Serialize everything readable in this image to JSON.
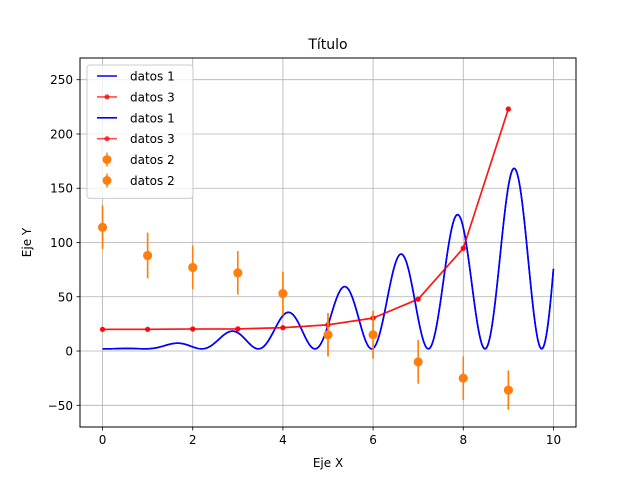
{
  "chart_data": {
    "type": "line",
    "title": "Título",
    "xlabel": "Eje X",
    "ylabel": "Eje Y",
    "xlim": [
      -0.5,
      10.5
    ],
    "ylim": [
      -70,
      270
    ],
    "xticks": [
      0,
      2,
      4,
      6,
      8,
      10
    ],
    "yticks": [
      -50,
      0,
      50,
      100,
      150,
      200,
      250
    ],
    "grid": true,
    "legend_position": "top-left",
    "series": [
      {
        "name": "datos 1",
        "kind": "curve",
        "formula": "x^2 * (1 + sin(5x)) + 2 (approx.)",
        "color": "#0000ff",
        "x_range": [
          0,
          10
        ]
      },
      {
        "name": "datos 3",
        "kind": "line-markers",
        "color": "#ff0000",
        "x": [
          0,
          1,
          2,
          3,
          4,
          5,
          6,
          7,
          8,
          9
        ],
        "y": [
          20,
          20,
          20.3,
          20.4,
          21.5,
          24.2,
          30.4,
          47.8,
          94.7,
          223
        ]
      },
      {
        "name": "datos 1",
        "kind": "curve",
        "formula": "x^2 * (1 + sin(5x)) + 2 (approx.)",
        "color": "#0000ff",
        "x_range": [
          0,
          10
        ]
      },
      {
        "name": "datos 3",
        "kind": "line-markers",
        "color": "#ff0000",
        "x": [
          0,
          1,
          2,
          3,
          4,
          5,
          6,
          7,
          8,
          9
        ],
        "y": [
          20,
          20,
          20.3,
          20.4,
          21.5,
          24.2,
          30.4,
          47.8,
          94.7,
          223
        ]
      },
      {
        "name": "datos 2",
        "kind": "errorbar",
        "color": "#ff7f0e",
        "x": [
          0,
          1,
          2,
          3,
          4,
          5,
          6,
          7,
          8,
          9
        ],
        "y": [
          114,
          88,
          77,
          72,
          53,
          15,
          15,
          -10,
          -25,
          -36
        ],
        "yerr": [
          20,
          21,
          20,
          20,
          20,
          20,
          22,
          20,
          20,
          18
        ]
      },
      {
        "name": "datos 2",
        "kind": "errorbar",
        "color": "#ff7f0e",
        "x": [
          0,
          1,
          2,
          3,
          4,
          5,
          6,
          7,
          8,
          9
        ],
        "y": [
          114,
          88,
          77,
          72,
          53,
          15,
          15,
          -10,
          -25,
          -36
        ],
        "yerr": [
          20,
          21,
          20,
          20,
          20,
          20,
          22,
          20,
          20,
          18
        ]
      }
    ]
  }
}
